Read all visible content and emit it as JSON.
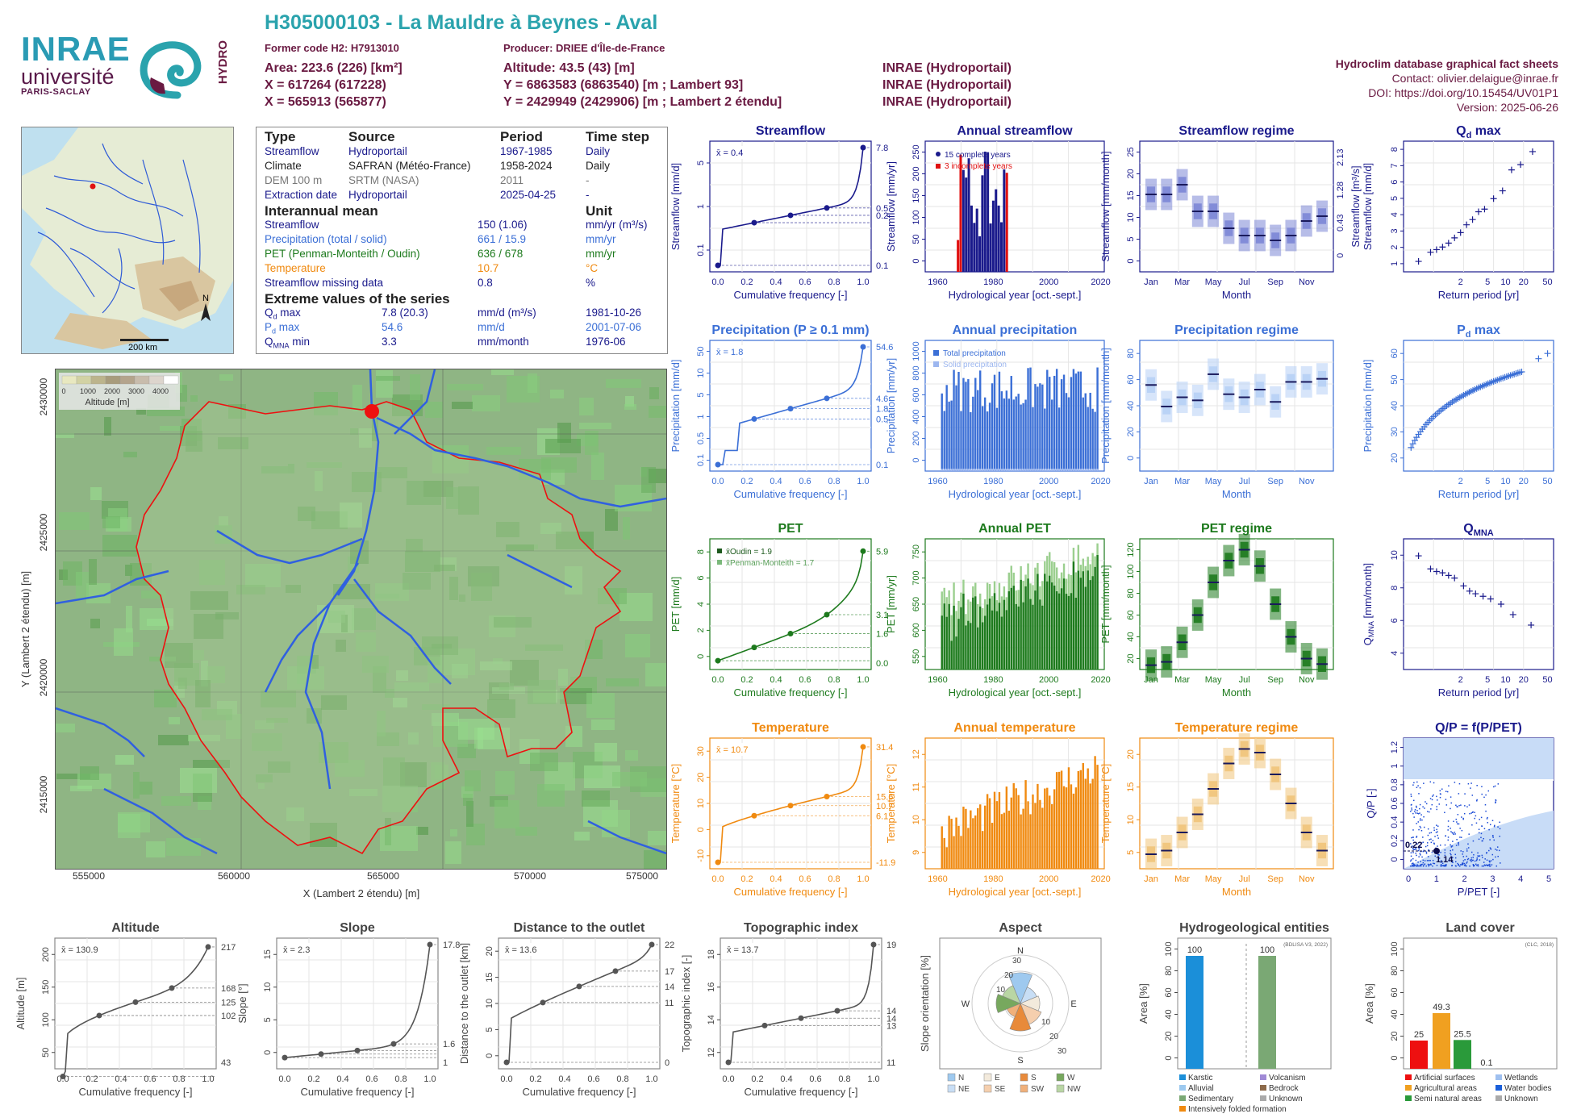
{
  "header": {
    "title": "H305000103 - La Mauldre à Beynes - Aval",
    "former_code": "Former code H2: H7913010",
    "producer": "Producer: DRIEE d'Île-de-France",
    "area": "Area: 223.6 (226) [km²]",
    "altitude": "Altitude: 43.5 (43) [m]",
    "x93": "X = 617264 (617228)",
    "y93": "Y = 6863583 (6863540) [m ; Lambert 93]",
    "x2e": "X = 565913 (565877)",
    "y2e": "Y = 2429949 (2429906) [m ; Lambert 2 étendu]",
    "src1": "INRAE (Hydroportail)",
    "src2": "INRAE (Hydroportail)",
    "src3": "INRAE (Hydroportail)"
  },
  "logos": {
    "inrae": "INRAE",
    "univ": "université",
    "paris": "PARIS-SACLAY",
    "hydro": "HYDRO"
  },
  "topright": {
    "db": "Hydroclim database graphical fact sheets",
    "contact": "Contact: olivier.delaigue@inrae.fr",
    "doi": "DOI: https://doi.org/10.15454/UV01P1",
    "version": "Version: 2025-06-26"
  },
  "france_map": {
    "north": "N",
    "scale": "200 km"
  },
  "info": {
    "head": [
      "Type",
      "Source",
      "Period",
      "Time step"
    ],
    "rows": [
      [
        "Streamflow",
        "Hydroportail",
        "1967-1985",
        "Daily"
      ],
      [
        "Climate",
        "SAFRAN (Météo-France)",
        "1958-2024",
        "Daily"
      ],
      [
        "DEM 100 m",
        "SRTM (NASA)",
        "2011",
        "-"
      ],
      [
        "Extraction date",
        "Hydroportail",
        "2025-04-25",
        "-"
      ]
    ],
    "mean_head": "Interannual mean",
    "unit_head": "Unit",
    "means": [
      [
        "Streamflow",
        "150 (1.06)",
        "mm/yr (m³/s)",
        "#1a1a8c"
      ],
      [
        "Precipitation (total / solid)",
        "661 / 15.9",
        "mm/yr",
        "#3b6fd6"
      ],
      [
        "PET (Penman-Monteith / Oudin)",
        "636 / 678",
        "mm/yr",
        "#1d7a1d"
      ],
      [
        "Temperature",
        "10.7",
        "°C",
        "#f08a10"
      ],
      [
        "Streamflow missing data",
        "0.8",
        "%",
        "#1a1a8c"
      ]
    ],
    "extreme_head": "Extreme values of the series",
    "extremes": [
      [
        "Q",
        "d",
        " max",
        "7.8 (20.3)",
        "mm/d (m³/s)",
        "1981-10-26",
        "#1a1a8c"
      ],
      [
        "P",
        "d",
        " max",
        "54.6",
        "mm/d",
        "2001-07-06",
        "#3b6fd6"
      ],
      [
        "Q",
        "MNA",
        " min",
        "3.3",
        "mm/month",
        "1976-06",
        "#1a1a8c"
      ]
    ]
  },
  "terrain": {
    "legend_title": "Altitude [m]",
    "legend_ticks": [
      "0",
      "1000",
      "2000",
      "3000",
      "4000"
    ],
    "xlabel": "X (Lambert 2 étendu) [m]",
    "ylabel": "Y (Lambert 2 étendu) [m]",
    "xticks": [
      "555000",
      "560000",
      "565000",
      "570000",
      "575000"
    ],
    "yticks": [
      "2430000",
      "2425000",
      "2420000",
      "2415000"
    ]
  },
  "chart_data": [
    {
      "id": "streamflow",
      "type": "line",
      "title": "Streamflow",
      "ylabel": "Streamflow [mm/d]",
      "xlabel": "Cumulative frequency [-]",
      "mean": "x̄ = 0.4",
      "color": "#1a1a8c",
      "log": true,
      "ylim": [
        0.1,
        7.8
      ],
      "right_labels": [
        "7.8",
        "0.5",
        "0.2",
        "0.1"
      ],
      "yticks": [
        "0.1",
        "1",
        "5"
      ],
      "x": [
        0,
        0.25,
        0.5,
        0.75,
        1
      ],
      "y": [
        0.1,
        0.2,
        0.26,
        0.5,
        7.8
      ]
    },
    {
      "id": "annual_streamflow",
      "type": "bar",
      "title": "Annual streamflow",
      "ylabel": "Streamflow [mm/yr]",
      "xlabel": "Hydrological year [oct.-sept.]",
      "color": "#1a1a8c",
      "legend": [
        "15 complete years",
        "3 incomplete years"
      ],
      "ylim": [
        0,
        250
      ],
      "yticks": [
        "0",
        "50",
        "100",
        "150",
        "200",
        "250"
      ],
      "xticks": [
        "1960",
        "1980",
        "2000",
        "2020"
      ]
    },
    {
      "id": "streamflow_regime",
      "type": "box",
      "title": "Streamflow regime",
      "ylabel": "Streamflow [mm/month]",
      "ylabel_r": "Streamflow [m³/s]",
      "xlabel": "Month",
      "color": "#7c86d6",
      "ylim": [
        0,
        27
      ],
      "yticks": [
        "0",
        "5",
        "10",
        "15",
        "20",
        "25"
      ],
      "right_ticks": [
        "0",
        "0.43",
        "1.28",
        "2.13"
      ],
      "months": [
        "Jan",
        "Mar",
        "May",
        "Jul",
        "Sep",
        "Nov"
      ],
      "median": [
        16,
        16,
        18,
        12.5,
        12.5,
        9,
        7.5,
        7.5,
        6.5,
        7.5,
        10.5,
        11.5
      ]
    },
    {
      "id": "qd_max",
      "type": "scatter",
      "title": "Q",
      "title_sub": "d",
      "title_tail": " max",
      "ylabel": "Streamflow [mm/d]",
      "xlabel": "Return period [yr]",
      "color": "#1a1a8c",
      "xticks": [
        "2",
        "5",
        "10",
        "20",
        "50"
      ],
      "yticks": [
        "1",
        "2",
        "3",
        "4",
        "5",
        "6",
        "7",
        "8"
      ]
    },
    {
      "id": "precip",
      "type": "line",
      "title": "Precipitation (P ≥ 0.1 mm)",
      "ylabel": "Precipitation [mm/d]",
      "xlabel": "Cumulative frequency [-]",
      "mean": "x̄ = 1.8",
      "color": "#3b6fd6",
      "log": true,
      "right_labels": [
        "54.6",
        "4.6",
        "1.8",
        "0.5",
        "0.1"
      ],
      "yticks": [
        "0.1",
        "0.5",
        "1",
        "5",
        "10",
        "50"
      ]
    },
    {
      "id": "annual_precip",
      "type": "bar",
      "title": "Annual precipitation",
      "ylabel": "Precipitation [mm/yr]",
      "xlabel": "Hydrological year [oct.-sept.]",
      "color": "#3b6fd6",
      "legend": [
        "Total precipitation",
        "Solid precipitation"
      ],
      "ylim": [
        0,
        1000
      ],
      "yticks": [
        "0",
        "200",
        "400",
        "600",
        "800",
        "1000"
      ],
      "xticks": [
        "1960",
        "1980",
        "2000",
        "2020"
      ]
    },
    {
      "id": "precip_regime",
      "type": "box",
      "title": "Precipitation regime",
      "ylabel": "Precipitation [mm/month]",
      "xlabel": "Month",
      "color": "#b7d0f5",
      "ylim": [
        0,
        85
      ],
      "yticks": [
        "0",
        "20",
        "40",
        "60",
        "80"
      ],
      "months": [
        "Jan",
        "Mar",
        "May",
        "Jul",
        "Sep",
        "Nov"
      ],
      "median": [
        56,
        42,
        48,
        46,
        63,
        50,
        48,
        53,
        45,
        58,
        58,
        60
      ]
    },
    {
      "id": "pd_max",
      "type": "scatter",
      "title": "P",
      "title_sub": "d",
      "title_tail": " max",
      "ylabel": "Precipitation [mm/d]",
      "xlabel": "Return period [yr]",
      "color": "#3b6fd6",
      "xticks": [
        "2",
        "5",
        "10",
        "20",
        "50"
      ],
      "yticks": [
        "20",
        "30",
        "40",
        "50",
        "60"
      ]
    },
    {
      "id": "pet",
      "type": "line",
      "title": "PET",
      "ylabel": "PET [mm/d]",
      "xlabel": "Cumulative frequency [-]",
      "mean_oudin": "x̄Oudin = 1.9",
      "mean_pm": "x̄Penman-Monteith = 1.7",
      "color": "#1d7a1d",
      "right_labels": [
        "5.9",
        "3.1",
        "1.6",
        "0.0"
      ],
      "yticks": [
        "0",
        "2",
        "4",
        "6",
        "8"
      ]
    },
    {
      "id": "annual_pet",
      "type": "bar",
      "title": "Annual PET",
      "ylabel": "PET [mm/yr]",
      "xlabel": "Hydrological year [oct.-sept.]",
      "color": "#1d7a1d",
      "ylim": [
        530,
        780
      ],
      "yticks": [
        "550",
        "600",
        "650",
        "700",
        "750"
      ],
      "xticks": [
        "1960",
        "1980",
        "2000",
        "2020"
      ]
    },
    {
      "id": "pet_regime",
      "type": "box",
      "title": "PET regime",
      "ylabel": "PET [mm/month]",
      "xlabel": "Month",
      "color": "#1d7a1d",
      "ylim": [
        10,
        130
      ],
      "yticks": [
        "20",
        "40",
        "60",
        "80",
        "100",
        "120"
      ],
      "months": [
        "Jan",
        "Mar",
        "May",
        "Jul",
        "Sep",
        "Nov"
      ],
      "median": [
        14,
        17,
        35,
        60,
        90,
        110,
        120,
        105,
        70,
        40,
        20,
        15
      ]
    },
    {
      "id": "qmna",
      "type": "scatter",
      "title": "Q",
      "title_sub": "MNA",
      "title_tail": "",
      "ylabel": "QMNA [mm/month]",
      "xlabel": "Return period [yr]",
      "color": "#1a1a8c",
      "xticks": [
        "2",
        "5",
        "10",
        "20",
        "50"
      ],
      "yticks": [
        "4",
        "6",
        "8",
        "10"
      ]
    },
    {
      "id": "temperature",
      "type": "line",
      "title": "Temperature",
      "ylabel": "Temperature [°C]",
      "xlabel": "Cumulative frequency [-]",
      "mean": "x̄ = 10.7",
      "color": "#f08a10",
      "right_labels": [
        "31.4",
        "15.6",
        "10.7",
        "6.1",
        "-11.9"
      ],
      "yticks": [
        "-10",
        "0",
        "10",
        "20",
        "30"
      ]
    },
    {
      "id": "annual_temperature",
      "type": "bar",
      "title": "Annual temperature",
      "ylabel": "Temperature [°C]",
      "xlabel": "Hydrological year [oct.-sept.]",
      "color": "#f08a10",
      "ylim": [
        8.5,
        12.6
      ],
      "yticks": [
        "9",
        "10",
        "11",
        "12"
      ],
      "xticks": [
        "1960",
        "1980",
        "2000",
        "2020"
      ]
    },
    {
      "id": "temperature_regime",
      "type": "box",
      "title": "Temperature regime",
      "ylabel": "Temperature [°C]",
      "xlabel": "Month",
      "color": "#f0c47a",
      "ylim": [
        2,
        20
      ],
      "yticks": [
        "5",
        "10",
        "15",
        "20"
      ],
      "months": [
        "Jan",
        "Mar",
        "May",
        "Jul",
        "Sep",
        "Nov"
      ],
      "median": [
        4,
        4.5,
        7,
        9.5,
        13,
        16.5,
        18.5,
        18,
        15,
        11,
        7,
        4.5
      ]
    },
    {
      "id": "qp_ppet",
      "type": "scatter",
      "title": "Q/P = f(P/PET)",
      "ylabel": "Q/P [-]",
      "xlabel": "P/PET [-]",
      "color": "#1a4ad6",
      "labels": [
        "0.22",
        "1.14"
      ],
      "xticks": [
        "0",
        "1",
        "2",
        "3",
        "4",
        "5"
      ],
      "yticks": [
        "0",
        "0.2",
        "0.4",
        "0.6",
        "0.8",
        "1",
        "1.2"
      ]
    },
    {
      "id": "altitude",
      "type": "line",
      "title": "Altitude",
      "ylabel": "Altitude [m]",
      "xlabel": "Cumulative frequency [-]",
      "mean": "x̄ = 130.9",
      "color": "#555555",
      "right_labels": [
        "217",
        "168",
        "125",
        "102",
        "43"
      ],
      "yticks": [
        "50",
        "100",
        "150",
        "200"
      ]
    },
    {
      "id": "slope",
      "type": "line",
      "title": "Slope",
      "ylabel": "Slope [°]",
      "xlabel": "Cumulative frequency [-]",
      "mean": "x̄ = 2.3",
      "color": "#555555",
      "right_labels": [
        "17.8",
        "1.6",
        "1"
      ],
      "yticks": [
        "0",
        "5",
        "10",
        "15"
      ]
    },
    {
      "id": "distance",
      "type": "line",
      "title": "Distance to the outlet",
      "ylabel": "Distance to the outlet [km]",
      "xlabel": "Cumulative frequency [-]",
      "mean": "x̄ = 13.6",
      "color": "#555555",
      "right_labels": [
        "22",
        "17",
        "14",
        "11",
        "0"
      ],
      "yticks": [
        "0",
        "5",
        "10",
        "15",
        "20"
      ]
    },
    {
      "id": "topo_index",
      "type": "line",
      "title": "Topographic index",
      "ylabel": "Topographic index [-]",
      "xlabel": "Cumulative frequency [-]",
      "mean": "x̄ = 13.7",
      "color": "#555555",
      "right_labels": [
        "19",
        "14",
        "14",
        "13",
        "11"
      ],
      "yticks": [
        "12",
        "14",
        "16",
        "18"
      ]
    },
    {
      "id": "aspect",
      "type": "pie",
      "title": "Aspect",
      "ylabel": "Slope orientation [%]",
      "ring_labels": [
        "10",
        "20",
        "30"
      ],
      "legend": [
        "N",
        "E",
        "S",
        "W",
        "NE",
        "SE",
        "SW",
        "NW"
      ],
      "colors": [
        "#9ec9ef",
        "#f3eadc",
        "#e88a3a",
        "#77a85e",
        "#c8def5",
        "#f5cfae",
        "#f0b07a",
        "#b9d6a4"
      ]
    },
    {
      "id": "hydrogeology",
      "type": "bar",
      "title": "Hydrogeological entities",
      "ylabel": "Area [%]",
      "source": "(BDLISA V3, 2022)",
      "values": [
        100,
        100
      ],
      "value_labels": [
        "100",
        "100"
      ],
      "colors": [
        "#1b8fd9",
        "#7aa874"
      ],
      "ylim": [
        0,
        100
      ],
      "yticks": [
        "0",
        "20",
        "40",
        "60",
        "80",
        "100"
      ],
      "legend": [
        "Karstic",
        "Volcanism",
        "Alluvial",
        "Bedrock",
        "Sedimentary",
        "Unknown",
        "Intensively folded formation"
      ],
      "legend_colors": [
        "#1b8fd9",
        "#a08ad6",
        "#9cc9ef",
        "#8c6a4a",
        "#7aa874",
        "#aaaaaa",
        "#f08a10"
      ]
    },
    {
      "id": "land_cover",
      "type": "bar",
      "title": "Land cover",
      "ylabel": "Area [%]",
      "source": "(CLC, 2018)",
      "values": [
        25,
        49.3,
        25.5,
        0.1
      ],
      "value_labels": [
        "25",
        "49.3",
        "25.5",
        "0.1"
      ],
      "colors": [
        "#ee1010",
        "#f0a020",
        "#2a9a3a",
        "#9fc0ef"
      ],
      "ylim": [
        0,
        100
      ],
      "yticks": [
        "0",
        "20",
        "40",
        "60",
        "80",
        "100"
      ],
      "legend": [
        "Artificial surfaces",
        "Wetlands",
        "Agricultural areas",
        "Water bodies",
        "Semi natural areas",
        "Unknown"
      ],
      "legend_colors": [
        "#ee1010",
        "#9fc0ef",
        "#f0a020",
        "#1b5fd9",
        "#2a9a3a",
        "#aaaaaa"
      ]
    }
  ]
}
